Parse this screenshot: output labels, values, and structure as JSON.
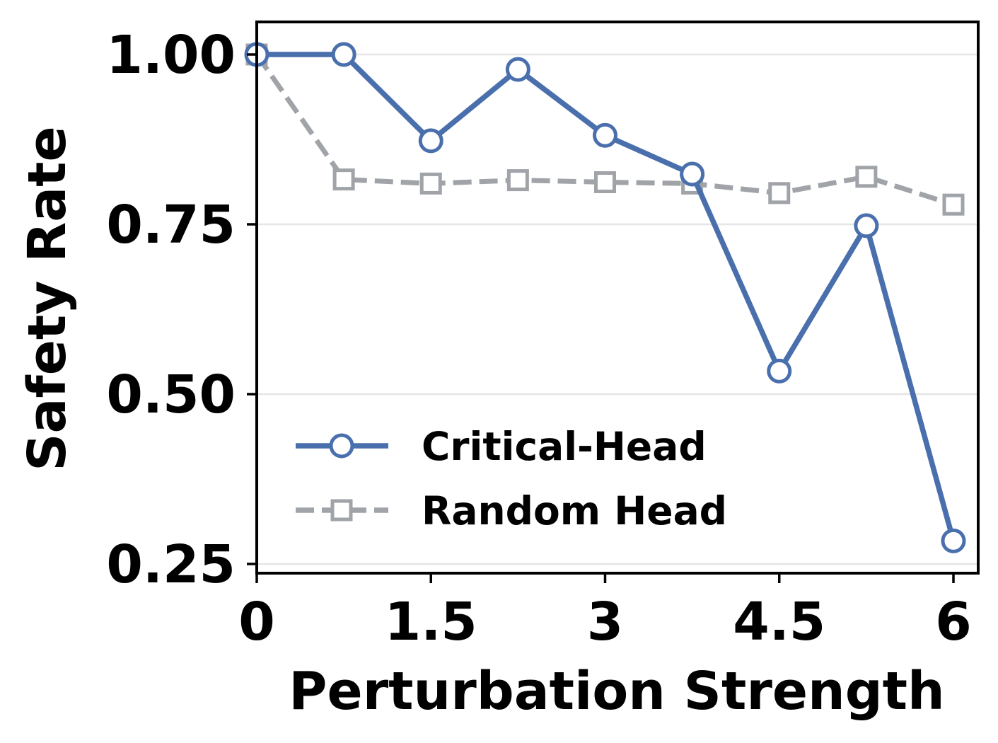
{
  "chart_data": {
    "type": "line",
    "title": "",
    "xlabel": "Perturbation Strength",
    "ylabel": "Safety Rate",
    "xlim": [
      0,
      6.2
    ],
    "ylim": [
      0.24,
      1.05
    ],
    "xticks": [
      0,
      1.5,
      3,
      4.5,
      6
    ],
    "xtick_labels": [
      "0",
      "1.5",
      "3",
      "4.5",
      "6"
    ],
    "yticks": [
      0.25,
      0.5,
      0.75,
      1.0
    ],
    "ytick_labels": [
      "0.25",
      "0.50",
      "0.75",
      "1.00"
    ],
    "grid": "horizontal",
    "legend_position": "lower-left",
    "series": [
      {
        "name": "Critical-Head",
        "color": "#4a6fad",
        "line_style": "solid",
        "marker": "circle",
        "x": [
          0,
          0.75,
          1.5,
          2.25,
          3,
          3.75,
          4.5,
          5.25,
          6
        ],
        "y": [
          1.0,
          1.0,
          0.873,
          0.978,
          0.881,
          0.824,
          0.534,
          0.748,
          0.284
        ]
      },
      {
        "name": "Random Head",
        "color": "#a0a3a8",
        "line_style": "dashed",
        "marker": "square",
        "x": [
          0,
          0.75,
          1.5,
          2.25,
          3,
          3.75,
          4.5,
          5.25,
          6
        ],
        "y": [
          1.0,
          0.816,
          0.81,
          0.815,
          0.812,
          0.81,
          0.796,
          0.82,
          0.779
        ]
      }
    ]
  }
}
